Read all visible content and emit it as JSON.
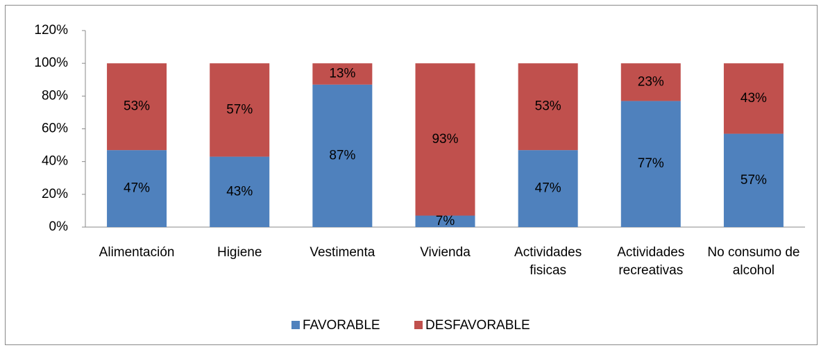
{
  "chart_data": {
    "type": "stacked_bar",
    "categories": [
      "Alimentación",
      "Higiene",
      "Vestimenta",
      "Vivienda",
      "Actividades fisicas",
      "Actividades recreativas",
      "No consumo de alcohol"
    ],
    "series": [
      {
        "name": "FAVORABLE",
        "color": "#4f81bd",
        "values": [
          47,
          43,
          87,
          7,
          47,
          77,
          57
        ],
        "value_labels": [
          "47%",
          "43%",
          "87%",
          "7%",
          "47%",
          "77%",
          "57%"
        ]
      },
      {
        "name": "DESFAVORABLE",
        "color": "#c0504d",
        "values": [
          53,
          57,
          13,
          93,
          53,
          23,
          43
        ],
        "value_labels": [
          "53%",
          "57%",
          "13%",
          "93%",
          "53%",
          "23%",
          "43%"
        ]
      }
    ],
    "ylim": [
      0,
      120
    ],
    "yticks": [
      {
        "value": 0,
        "label": "0%"
      },
      {
        "value": 20,
        "label": "20%"
      },
      {
        "value": 40,
        "label": "40%"
      },
      {
        "value": 60,
        "label": "60%"
      },
      {
        "value": 80,
        "label": "80%"
      },
      {
        "value": 100,
        "label": "100%"
      },
      {
        "value": 120,
        "label": "120%"
      }
    ],
    "grid": false,
    "legend": "bottom"
  }
}
